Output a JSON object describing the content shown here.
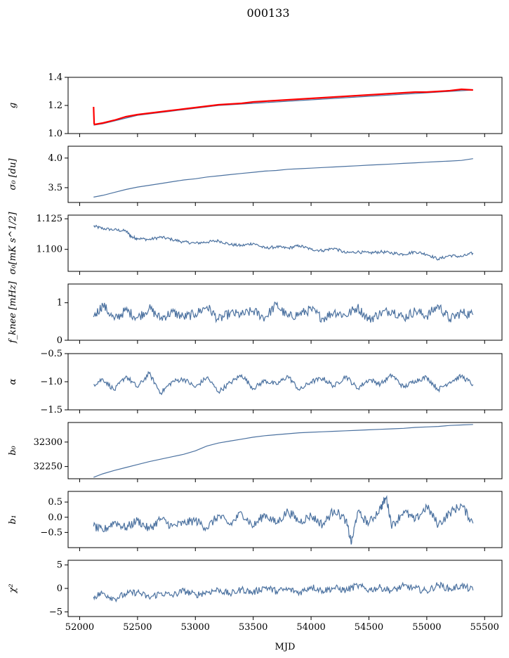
{
  "figure": {
    "title": "000133",
    "xlabel": "MJD"
  },
  "colors": {
    "series": "#4c72a0",
    "fit": "#ff0000",
    "axis": "#000000"
  },
  "chart_data": [
    {
      "type": "line",
      "ylabel": "g",
      "ylim": [
        1.0,
        1.4
      ],
      "yticks": [
        "1.0",
        "1.2",
        "1.4"
      ],
      "ytick_values": [
        1.0,
        1.2,
        1.4
      ],
      "xlim": [
        51900,
        55650
      ],
      "series": [
        {
          "x": [
            52120,
            52200,
            52300,
            52400,
            52500,
            52600,
            52700,
            52800,
            52900,
            53000,
            53100,
            53200,
            53300,
            53400,
            53500,
            53600,
            53700,
            53800,
            53900,
            54000,
            54100,
            54200,
            54300,
            54400,
            54500,
            54600,
            54700,
            54800,
            54900,
            55000,
            55100,
            55200,
            55300,
            55400
          ],
          "y": [
            1.06,
            1.07,
            1.09,
            1.11,
            1.13,
            1.14,
            1.15,
            1.16,
            1.17,
            1.18,
            1.19,
            1.2,
            1.205,
            1.21,
            1.215,
            1.22,
            1.225,
            1.23,
            1.235,
            1.24,
            1.245,
            1.25,
            1.255,
            1.26,
            1.265,
            1.27,
            1.275,
            1.28,
            1.285,
            1.29,
            1.295,
            1.3,
            1.305,
            1.31
          ]
        },
        {
          "x": [
            52120,
            52125,
            52130,
            52200,
            52300,
            52400,
            52500,
            52600,
            52700,
            52800,
            52900,
            53000,
            53100,
            53200,
            53300,
            53400,
            53500,
            53600,
            53700,
            53800,
            53900,
            54000,
            54100,
            54200,
            54300,
            54400,
            54500,
            54600,
            54700,
            54800,
            54900,
            55000,
            55100,
            55200,
            55300,
            55400
          ],
          "y": [
            1.19,
            1.07,
            1.065,
            1.075,
            1.095,
            1.12,
            1.135,
            1.145,
            1.155,
            1.165,
            1.175,
            1.185,
            1.195,
            1.205,
            1.21,
            1.215,
            1.225,
            1.23,
            1.235,
            1.24,
            1.245,
            1.25,
            1.255,
            1.26,
            1.265,
            1.27,
            1.275,
            1.28,
            1.285,
            1.29,
            1.295,
            1.295,
            1.3,
            1.305,
            1.315,
            1.31
          ]
        }
      ]
    },
    {
      "type": "line",
      "ylabel": "σ₀ [du]",
      "ylim": [
        3.25,
        4.2
      ],
      "yticks": [
        "3.5",
        "4.0"
      ],
      "ytick_values": [
        3.5,
        4.0
      ],
      "xlim": [
        51900,
        55650
      ],
      "series": [
        {
          "x": [
            52120,
            52200,
            52300,
            52400,
            52500,
            52600,
            52700,
            52800,
            52900,
            53000,
            53100,
            53200,
            53300,
            53400,
            53500,
            53600,
            53700,
            53800,
            53900,
            54000,
            54100,
            54200,
            54300,
            54400,
            54500,
            54600,
            54700,
            54800,
            54900,
            55000,
            55100,
            55200,
            55300,
            55400
          ],
          "y": [
            3.34,
            3.37,
            3.42,
            3.47,
            3.51,
            3.54,
            3.57,
            3.6,
            3.63,
            3.65,
            3.68,
            3.7,
            3.72,
            3.74,
            3.76,
            3.78,
            3.79,
            3.81,
            3.82,
            3.83,
            3.84,
            3.85,
            3.86,
            3.87,
            3.88,
            3.89,
            3.9,
            3.91,
            3.92,
            3.93,
            3.94,
            3.95,
            3.96,
            3.99
          ]
        }
      ]
    },
    {
      "type": "line",
      "ylabel": "σ₀[mK s^1/2]",
      "ylim": [
        1.082,
        1.128
      ],
      "yticks": [
        "1.100",
        "1.125"
      ],
      "ytick_values": [
        1.1,
        1.125
      ],
      "xlim": [
        51900,
        55650
      ],
      "series": [
        {
          "x": [
            52120,
            52200,
            52300,
            52400,
            52450,
            52500,
            52600,
            52700,
            52800,
            52900,
            53000,
            53100,
            53200,
            53300,
            53400,
            53500,
            53600,
            53700,
            53800,
            53900,
            54000,
            54100,
            54200,
            54300,
            54400,
            54500,
            54600,
            54700,
            54800,
            54900,
            55000,
            55100,
            55200,
            55300,
            55400
          ],
          "y": [
            1.119,
            1.117,
            1.116,
            1.115,
            1.11,
            1.109,
            1.108,
            1.11,
            1.108,
            1.106,
            1.105,
            1.106,
            1.107,
            1.104,
            1.103,
            1.105,
            1.101,
            1.102,
            1.101,
            1.103,
            1.1,
            1.099,
            1.101,
            1.097,
            1.098,
            1.097,
            1.098,
            1.097,
            1.096,
            1.098,
            1.096,
            1.092,
            1.095,
            1.094,
            1.097
          ]
        }
      ]
    },
    {
      "type": "line",
      "ylabel": "f_knee [mHz]",
      "ylim": [
        0,
        1.5
      ],
      "yticks": [
        "0",
        "1"
      ],
      "ytick_values": [
        0,
        1
      ],
      "xlim": [
        51900,
        55650
      ],
      "series": [
        {
          "x": [
            52120,
            52200,
            52300,
            52400,
            52500,
            52600,
            52700,
            52800,
            52900,
            53000,
            53100,
            53200,
            53300,
            53400,
            53500,
            53600,
            53700,
            53800,
            53900,
            54000,
            54100,
            54200,
            54300,
            54400,
            54500,
            54600,
            54700,
            54800,
            54900,
            55000,
            55100,
            55200,
            55300,
            55400
          ],
          "y": [
            0.62,
            0.95,
            0.55,
            0.8,
            0.6,
            0.85,
            0.58,
            0.75,
            0.62,
            0.7,
            0.9,
            0.55,
            0.72,
            0.68,
            0.78,
            0.6,
            0.95,
            0.62,
            0.7,
            0.82,
            0.58,
            0.76,
            0.66,
            0.88,
            0.55,
            0.72,
            0.8,
            0.6,
            0.78,
            0.65,
            0.92,
            0.56,
            0.74,
            0.68
          ]
        }
      ]
    },
    {
      "type": "line",
      "ylabel": "α",
      "ylim": [
        -1.5,
        -0.5
      ],
      "yticks": [
        "−1.5",
        "−1.0",
        "−0.5"
      ],
      "ytick_values": [
        -1.5,
        -1.0,
        -0.5
      ],
      "xlim": [
        51900,
        55650
      ],
      "series": [
        {
          "x": [
            52120,
            52200,
            52300,
            52400,
            52500,
            52600,
            52700,
            52800,
            52900,
            53000,
            53100,
            53200,
            53300,
            53400,
            53500,
            53600,
            53700,
            53800,
            53900,
            54000,
            54100,
            54200,
            54300,
            54400,
            54500,
            54600,
            54700,
            54800,
            54900,
            55000,
            55100,
            55200,
            55300,
            55400
          ],
          "y": [
            -1.05,
            -0.95,
            -1.15,
            -0.9,
            -1.1,
            -0.85,
            -1.2,
            -1.0,
            -0.95,
            -1.1,
            -0.92,
            -1.18,
            -1.02,
            -0.88,
            -1.12,
            -0.98,
            -1.05,
            -0.9,
            -1.15,
            -1.0,
            -0.94,
            -1.08,
            -0.9,
            -1.12,
            -0.96,
            -1.04,
            -0.88,
            -1.1,
            -0.98,
            -0.92,
            -1.14,
            -1.0,
            -0.9,
            -1.05
          ]
        }
      ]
    },
    {
      "type": "line",
      "ylabel": "b₀",
      "ylim": [
        32225,
        32340
      ],
      "yticks": [
        "32250",
        "32300"
      ],
      "ytick_values": [
        32250,
        32300
      ],
      "xlim": [
        51900,
        55650
      ],
      "series": [
        {
          "x": [
            52120,
            52200,
            52300,
            52400,
            52500,
            52600,
            52700,
            52800,
            52900,
            53000,
            53100,
            53200,
            53300,
            53400,
            53500,
            53600,
            53700,
            53800,
            53900,
            54000,
            54100,
            54200,
            54300,
            54400,
            54500,
            54600,
            54700,
            54800,
            54900,
            55000,
            55100,
            55200,
            55300,
            55400
          ],
          "y": [
            32228,
            32235,
            32242,
            32248,
            32254,
            32260,
            32265,
            32270,
            32275,
            32282,
            32292,
            32298,
            32302,
            32306,
            32310,
            32313,
            32315,
            32317,
            32319,
            32320,
            32321,
            32322,
            32323,
            32324,
            32325,
            32326,
            32327,
            32328,
            32330,
            32331,
            32332,
            32334,
            32335,
            32336
          ]
        }
      ]
    },
    {
      "type": "line",
      "ylabel": "b₁",
      "ylim": [
        -1.0,
        0.85
      ],
      "yticks": [
        "−0.5",
        "0.0",
        "0.5"
      ],
      "ytick_values": [
        -0.5,
        0.0,
        0.5
      ],
      "xlim": [
        51900,
        55650
      ],
      "series": [
        {
          "x": [
            52120,
            52200,
            52300,
            52400,
            52500,
            52600,
            52700,
            52800,
            52900,
            53000,
            53100,
            53200,
            53300,
            53400,
            53500,
            53600,
            53700,
            53800,
            53900,
            54000,
            54100,
            54200,
            54300,
            54350,
            54400,
            54500,
            54600,
            54650,
            54700,
            54800,
            54900,
            55000,
            55100,
            55200,
            55300,
            55400
          ],
          "y": [
            -0.3,
            -0.45,
            -0.15,
            -0.35,
            -0.1,
            -0.4,
            -0.05,
            -0.3,
            -0.2,
            -0.1,
            -0.35,
            0.05,
            -0.25,
            0.15,
            -0.3,
            0.1,
            -0.2,
            0.2,
            -0.15,
            0.05,
            -0.25,
            0.25,
            -0.1,
            -0.85,
            0.15,
            -0.2,
            0.3,
            0.65,
            -0.3,
            0.2,
            -0.1,
            0.35,
            -0.25,
            0.15,
            0.4,
            -0.2
          ]
        }
      ]
    },
    {
      "type": "line",
      "ylabel": "χ²",
      "ylim": [
        -6,
        6
      ],
      "yticks": [
        "−5",
        "0",
        "5"
      ],
      "ytick_values": [
        -5,
        0,
        5
      ],
      "xlim": [
        51900,
        55650
      ],
      "xticks": [
        "52000",
        "52500",
        "53000",
        "53500",
        "54000",
        "54500",
        "55000",
        "55500"
      ],
      "xtick_values": [
        52000,
        52500,
        53000,
        53500,
        54000,
        54500,
        55000,
        55500
      ],
      "series": [
        {
          "x": [
            52120,
            52200,
            52300,
            52400,
            52500,
            52600,
            52700,
            52800,
            52900,
            53000,
            53100,
            53200,
            53300,
            53400,
            53500,
            53600,
            53700,
            53800,
            53900,
            54000,
            54100,
            54200,
            54300,
            54400,
            54500,
            54600,
            54700,
            54800,
            54900,
            55000,
            55100,
            55200,
            55300,
            55400
          ],
          "y": [
            -1.8,
            -1.0,
            -2.2,
            -1.2,
            -0.8,
            -2.0,
            -1.0,
            -1.5,
            -0.5,
            -1.4,
            -0.8,
            -0.3,
            -1.2,
            -0.2,
            -0.9,
            0.3,
            -0.6,
            -0.2,
            -0.9,
            0.4,
            -0.5,
            0.1,
            -0.4,
            0.6,
            -0.3,
            0.2,
            -0.5,
            0.5,
            0.0,
            -0.6,
            0.8,
            -0.2,
            0.6,
            -0.4
          ]
        }
      ]
    }
  ]
}
